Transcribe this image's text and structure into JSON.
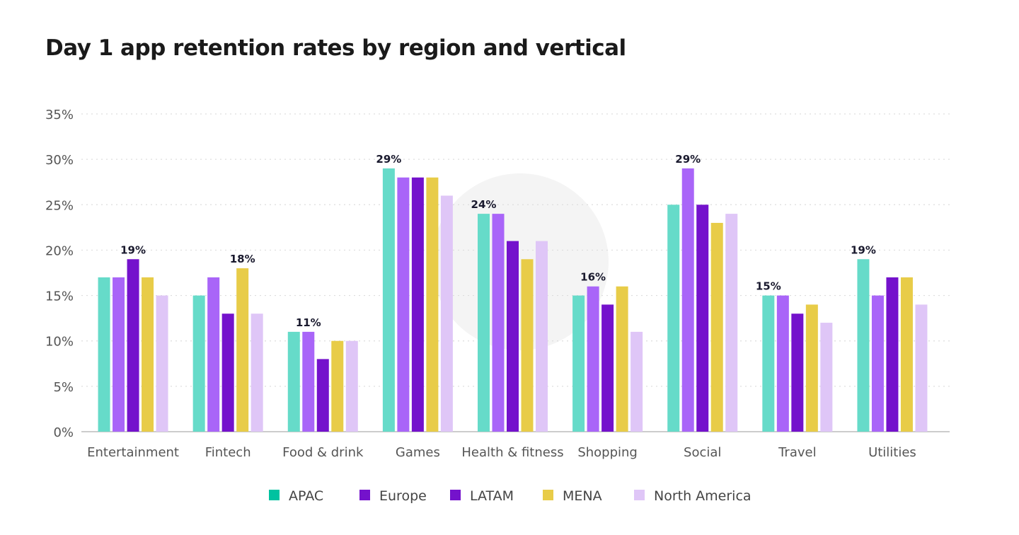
{
  "chart_data": {
    "type": "bar",
    "title": "Day 1 app retention rates by region and vertical",
    "xlabel": "",
    "ylabel": "",
    "ylim": [
      0,
      35
    ],
    "yticks": [
      0,
      5,
      10,
      15,
      20,
      25,
      30,
      35
    ],
    "ytick_format": "%",
    "grid": true,
    "legend_placement": "bottom",
    "categories": [
      "Entertainment",
      "Fintech",
      "Food & drink",
      "Games",
      "Health & fitness",
      "Shopping",
      "Social",
      "Travel",
      "Utilities"
    ],
    "series": [
      {
        "name": "APAC",
        "color": "#66dbc9",
        "legend_color": "#00c2a0",
        "values": [
          17,
          15,
          11,
          29,
          24,
          15,
          25,
          15,
          19
        ]
      },
      {
        "name": "Europe",
        "color": "#a965f8",
        "legend_color": "#7412cc",
        "values": [
          17,
          17,
          11,
          28,
          24,
          16,
          29,
          15,
          15
        ]
      },
      {
        "name": "LATAM",
        "color": "#7412cc",
        "legend_color": "#7412cc",
        "values": [
          19,
          13,
          8,
          28,
          21,
          14,
          25,
          13,
          17
        ]
      },
      {
        "name": "MENA",
        "color": "#e8cc48",
        "legend_color": "#e8cc48",
        "values": [
          17,
          18,
          10,
          28,
          19,
          16,
          23,
          14,
          17
        ]
      },
      {
        "name": "North America",
        "color": "#dfc6f7",
        "legend_color": "#dfc6f7",
        "values": [
          15,
          13,
          10,
          26,
          21,
          11,
          24,
          12,
          14
        ]
      }
    ],
    "annotations": [
      {
        "category": "Entertainment",
        "series": "LATAM",
        "label": "19%"
      },
      {
        "category": "Fintech",
        "series": "MENA",
        "label": "18%"
      },
      {
        "category": "Food & drink",
        "series": "Europe",
        "label": "11%"
      },
      {
        "category": "Games",
        "series": "APAC",
        "label": "29%"
      },
      {
        "category": "Health & fitness",
        "series": "APAC",
        "label": "24%"
      },
      {
        "category": "Shopping",
        "series": "Europe",
        "label": "16%"
      },
      {
        "category": "Social",
        "series": "Europe",
        "label": "29%"
      },
      {
        "category": "Travel",
        "series": "APAC",
        "label": "15%"
      },
      {
        "category": "Utilities",
        "series": "APAC",
        "label": "19%"
      }
    ]
  }
}
